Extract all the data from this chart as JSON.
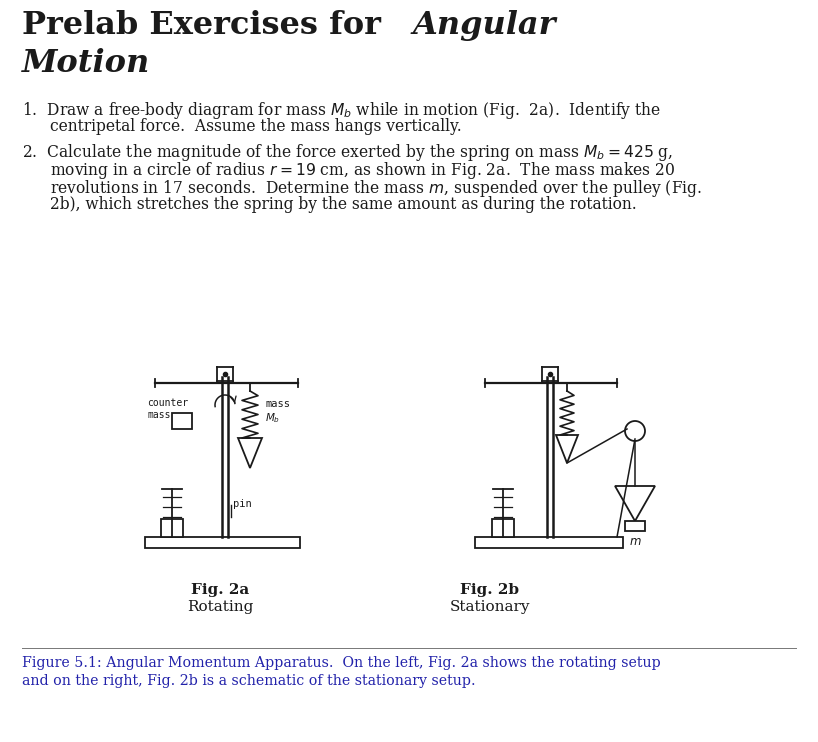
{
  "bg_color": "#ffffff",
  "text_color": "#1a1a1a",
  "caption_color": "#2222aa",
  "lc": "#1a1a1a",
  "title_normal": "Prelab Exercises for ",
  "title_italic1": "Angular",
  "title_italic2": "Motion",
  "item1_l1": "1.  Draw a free-body diagram for mass $M_b$ while in motion (Fig.  2a).  Identify the",
  "item1_l2": "centripetal force.  Assume the mass hangs vertically.",
  "item2_l1": "2.  Calculate the magnitude of the force exerted by the spring on mass $M_b = 425$ g,",
  "item2_l2": "moving in a circle of radius $r = 19$ cm, as shown in Fig. 2a.  The mass makes 20",
  "item2_l3": "revolutions in 17 seconds.  Determine the mass $m$, suspended over the pulley (Fig.",
  "item2_l4": "2b), which stretches the spring by the same amount as during the rotation.",
  "fig2a_label": "Fig. 2a",
  "fig2a_sub": "Rotating",
  "fig2b_label": "Fig. 2b",
  "fig2b_sub": "Stationary",
  "cap_l1": "Figure 5.1: Angular Momentum Apparatus.  On the left, Fig. 2a shows the rotating setup",
  "cap_l2": "and on the right, Fig. 2b is a schematic of the stationary setup.",
  "counter_mass": "counter\nmass",
  "mass_mb": "mass\n$M_b$",
  "pin": "pin",
  "m_label": "$m$"
}
